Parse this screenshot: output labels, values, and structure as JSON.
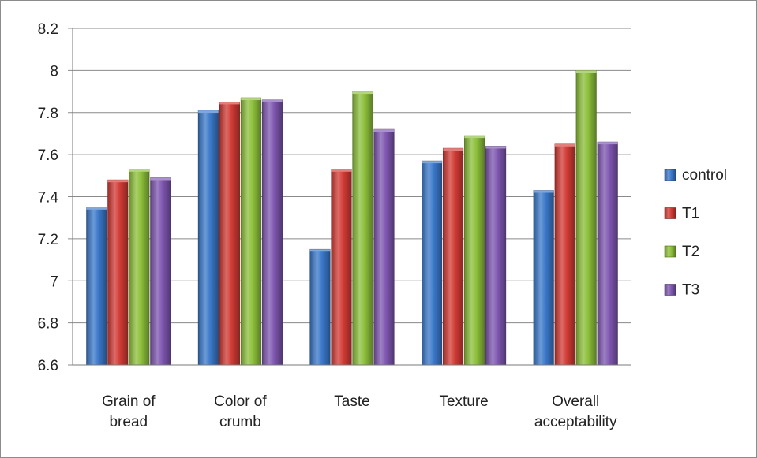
{
  "chart_data": {
    "type": "bar",
    "categories": [
      [
        "Grain of",
        "bread"
      ],
      [
        "Color of",
        "crumb"
      ],
      [
        "Taste"
      ],
      [
        "Texture"
      ],
      [
        "Overall",
        "acceptability"
      ]
    ],
    "series": [
      {
        "name": "control",
        "color": "#3a78c9",
        "values": [
          7.35,
          7.81,
          7.15,
          7.57,
          7.43
        ]
      },
      {
        "name": "T1",
        "color": "#d13a34",
        "values": [
          7.48,
          7.85,
          7.53,
          7.63,
          7.65
        ]
      },
      {
        "name": "T2",
        "color": "#8cbf3a",
        "values": [
          7.53,
          7.87,
          7.9,
          7.69,
          8.0
        ]
      },
      {
        "name": "T3",
        "color": "#7e56b0",
        "values": [
          7.49,
          7.86,
          7.72,
          7.64,
          7.66
        ]
      }
    ],
    "ylim": [
      6.6,
      8.2
    ],
    "yticks": [
      "6.6",
      "6.8",
      "7",
      "7.2",
      "7.4",
      "7.6",
      "7.8",
      "8",
      "8.2"
    ],
    "grid": true,
    "legend_position": "right"
  }
}
